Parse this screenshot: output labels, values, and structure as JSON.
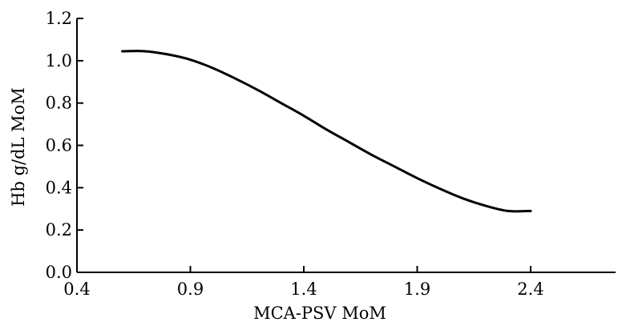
{
  "chart_data": {
    "type": "line",
    "title": "",
    "xlabel": "MCA-PSV MoM",
    "ylabel": "Hb g/dL MoM",
    "xlim": [
      0.4,
      2.9
    ],
    "ylim": [
      0.0,
      1.2
    ],
    "xticks": [
      0.4,
      0.9,
      1.4,
      1.9,
      2.4
    ],
    "xtick_labels": [
      "0.4",
      "0.9",
      "1.4",
      "1.9",
      "2.4"
    ],
    "yticks": [
      0.0,
      0.2,
      0.4,
      0.6,
      0.8,
      1.0,
      1.2
    ],
    "ytick_labels": [
      "0.0",
      "0.2",
      "0.4",
      "0.6",
      "0.8",
      "1.0",
      "1.2"
    ],
    "grid": false,
    "series": [
      {
        "x": [
          0.6,
          0.7,
          0.8,
          0.9,
          1.0,
          1.1,
          1.2,
          1.3,
          1.4,
          1.5,
          1.6,
          1.7,
          1.8,
          1.9,
          2.0,
          2.1,
          2.2,
          2.3,
          2.4
        ],
        "values": [
          1.045,
          1.045,
          1.03,
          1.005,
          0.965,
          0.915,
          0.86,
          0.8,
          0.74,
          0.675,
          0.615,
          0.555,
          0.5,
          0.445,
          0.395,
          0.35,
          0.315,
          0.29,
          0.29
        ],
        "color": "#000000"
      }
    ]
  }
}
